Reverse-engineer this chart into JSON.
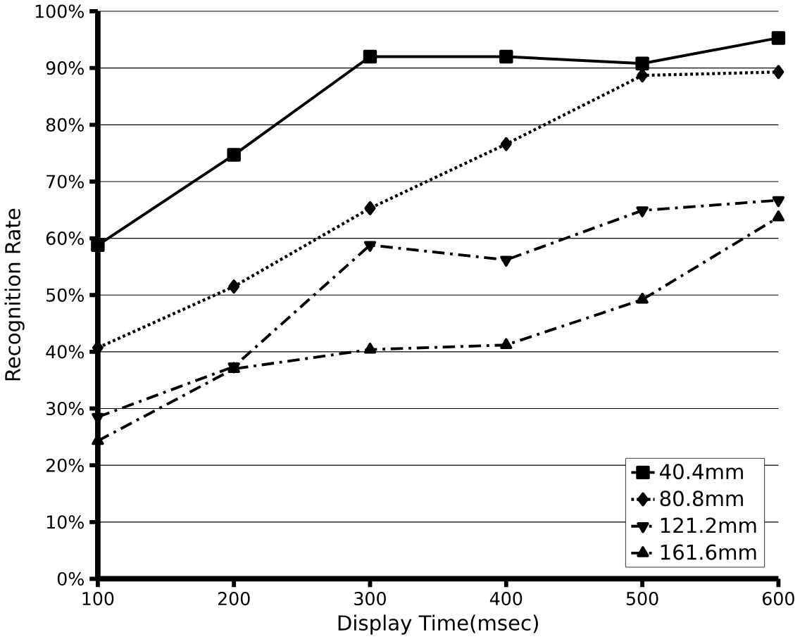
{
  "chart_data": {
    "type": "line",
    "xlabel": "Display Time(msec)",
    "ylabel": "Recognition Rate",
    "x": [
      100,
      200,
      300,
      400,
      500,
      600
    ],
    "series": [
      {
        "name": "40.4mm",
        "color": "#000000",
        "marker": "square",
        "line_style": "solid",
        "values": [
          58.8,
          74.7,
          92.0,
          92.0,
          90.8,
          95.3
        ]
      },
      {
        "name": "80.8mm",
        "color": "#000000",
        "marker": "diamond",
        "line_style": "dotted",
        "values": [
          40.7,
          51.5,
          65.3,
          76.6,
          88.7,
          89.3
        ]
      },
      {
        "name": "121.2mm",
        "color": "#000000",
        "marker": "triangle-down",
        "line_style": "dashed",
        "values": [
          28.5,
          37.4,
          58.8,
          56.2,
          64.9,
          66.7
        ]
      },
      {
        "name": "161.6mm",
        "color": "#000000",
        "marker": "triangle",
        "line_style": "dashed",
        "values": [
          24.3,
          37.0,
          40.4,
          41.2,
          49.2,
          63.7
        ]
      }
    ],
    "xlim": [
      100,
      600
    ],
    "xticks": [
      100,
      200,
      300,
      400,
      500,
      600
    ],
    "ylim": [
      0,
      100
    ],
    "yticks": [
      {
        "value": 0,
        "label": "0%"
      },
      {
        "value": 10,
        "label": "10%"
      },
      {
        "value": 20,
        "label": "20%"
      },
      {
        "value": 30,
        "label": "30%"
      },
      {
        "value": 40,
        "label": "40%"
      },
      {
        "value": 50,
        "label": "50%"
      },
      {
        "value": 60,
        "label": "60%"
      },
      {
        "value": 70,
        "label": "70%"
      },
      {
        "value": 80,
        "label": "80%"
      },
      {
        "value": 90,
        "label": "90%"
      },
      {
        "value": 100,
        "label": "100%"
      }
    ],
    "grid": "y",
    "legend": "bottom right"
  }
}
